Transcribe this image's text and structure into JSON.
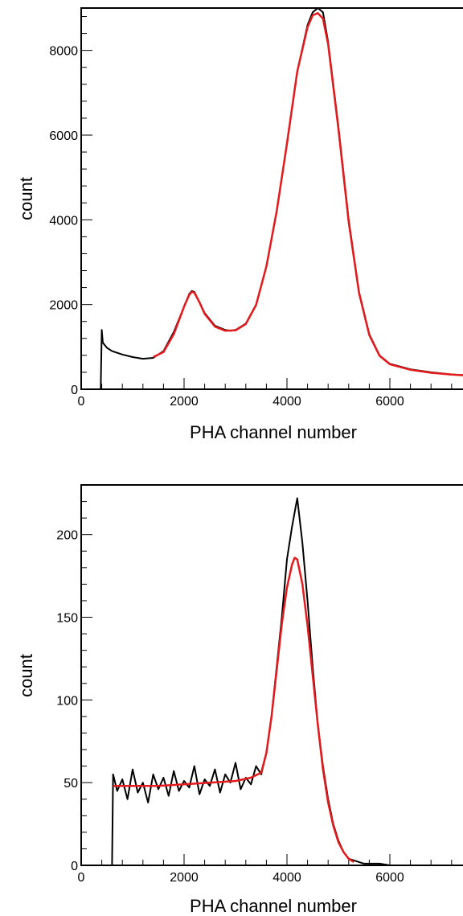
{
  "chart_data": [
    {
      "type": "line",
      "title": "",
      "xlabel": "PHA channel number",
      "ylabel": "count",
      "xlim": [
        0,
        7500
      ],
      "ylim": [
        0,
        9000
      ],
      "x_ticks": [
        0,
        2000,
        4000,
        6000
      ],
      "y_ticks": [
        0,
        2000,
        4000,
        6000,
        8000
      ],
      "grid": false,
      "series": [
        {
          "color": "#000000",
          "x": [
            380,
            400,
            420,
            500,
            600,
            800,
            1000,
            1200,
            1400,
            1600,
            1800,
            2000,
            2100,
            2150,
            2200,
            2300,
            2400,
            2600,
            2800,
            2900,
            3000,
            3200,
            3400,
            3600,
            3800,
            4000,
            4200,
            4400,
            4500,
            4600,
            4700,
            4800,
            5000,
            5200,
            5400,
            5600,
            5800,
            6000,
            6400,
            6800,
            7200,
            7500
          ],
          "values": [
            0,
            1400,
            1100,
            980,
            900,
            820,
            760,
            720,
            740,
            900,
            1350,
            1950,
            2250,
            2320,
            2300,
            2050,
            1800,
            1500,
            1400,
            1380,
            1400,
            1550,
            2000,
            2900,
            4200,
            5800,
            7500,
            8600,
            8900,
            9000,
            8900,
            8200,
            6200,
            4000,
            2300,
            1300,
            800,
            600,
            470,
            400,
            350,
            330
          ]
        },
        {
          "color": "#e41a1c",
          "x": [
            1400,
            1600,
            1800,
            2000,
            2100,
            2150,
            2200,
            2300,
            2400,
            2600,
            2800,
            3000,
            3200,
            3400,
            3600,
            3800,
            4000,
            4200,
            4400,
            4500,
            4600,
            4700,
            4800,
            5000,
            5200,
            5400,
            5600,
            5800,
            6000,
            6400,
            6800,
            7200,
            7500
          ],
          "values": [
            760,
            880,
            1300,
            1950,
            2230,
            2300,
            2280,
            2050,
            1780,
            1480,
            1380,
            1390,
            1540,
            1990,
            2900,
            4200,
            5800,
            7500,
            8550,
            8830,
            8880,
            8750,
            8150,
            6150,
            3950,
            2280,
            1280,
            790,
            590,
            460,
            390,
            345,
            325
          ]
        }
      ]
    },
    {
      "type": "line",
      "title": "",
      "xlabel": "PHA channel number",
      "ylabel": "count",
      "xlim": [
        0,
        7500
      ],
      "ylim": [
        0,
        230
      ],
      "x_ticks": [
        0,
        2000,
        4000,
        6000
      ],
      "y_ticks": [
        0,
        50,
        100,
        150,
        200
      ],
      "grid": false,
      "series": [
        {
          "color": "#000000",
          "x": [
            600,
            620,
            700,
            800,
            900,
            1000,
            1100,
            1200,
            1300,
            1400,
            1500,
            1600,
            1700,
            1800,
            1900,
            2000,
            2100,
            2200,
            2300,
            2400,
            2500,
            2600,
            2700,
            2800,
            2900,
            3000,
            3100,
            3200,
            3300,
            3400,
            3500,
            3600,
            3700,
            3800,
            3900,
            4000,
            4100,
            4200,
            4300,
            4400,
            4500,
            4600,
            4700,
            4800,
            4900,
            5000,
            5100,
            5200,
            5300,
            5400,
            5500,
            5600,
            5800,
            6000,
            6500,
            7000,
            7500
          ],
          "values": [
            0,
            55,
            45,
            52,
            40,
            58,
            44,
            50,
            38,
            55,
            46,
            53,
            42,
            57,
            45,
            51,
            47,
            60,
            43,
            52,
            48,
            58,
            44,
            55,
            50,
            62,
            46,
            53,
            49,
            60,
            55,
            68,
            90,
            120,
            150,
            185,
            205,
            222,
            195,
            160,
            120,
            85,
            60,
            40,
            25,
            15,
            8,
            4,
            3,
            2,
            1,
            1,
            1,
            0,
            0,
            0,
            0
          ]
        },
        {
          "color": "#e41a1c",
          "x": [
            620,
            1000,
            1500,
            2000,
            2500,
            3000,
            3300,
            3500,
            3600,
            3700,
            3800,
            3900,
            4000,
            4100,
            4150,
            4200,
            4300,
            4400,
            4500,
            4600,
            4700,
            4800,
            4900,
            5000,
            5100,
            5200,
            5300
          ],
          "values": [
            48,
            48,
            48,
            49,
            50,
            51,
            53,
            56,
            68,
            90,
            118,
            146,
            168,
            182,
            186,
            185,
            170,
            145,
            115,
            85,
            58,
            38,
            24,
            14,
            8,
            4,
            2
          ]
        }
      ]
    }
  ]
}
